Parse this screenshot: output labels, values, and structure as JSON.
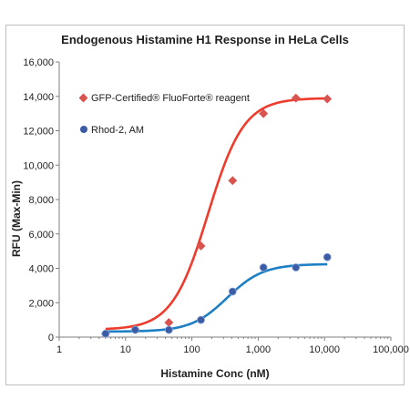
{
  "chart_data": {
    "type": "scatter",
    "title": "Endogenous Histamine H1 Response in HeLa Cells",
    "xlabel": "Histamine Conc (nM)",
    "ylabel": "RFU (Max-Min)",
    "x_scale": "log",
    "xlim": [
      1,
      100000
    ],
    "ylim": [
      0,
      16000
    ],
    "x_ticks": [
      1,
      10,
      100,
      1000,
      10000,
      100000
    ],
    "x_tick_labels": [
      "1",
      "10",
      "100",
      "1,000",
      "10,000",
      "100,000"
    ],
    "y_ticks": [
      0,
      2000,
      4000,
      6000,
      8000,
      10000,
      12000,
      14000,
      16000
    ],
    "y_tick_labels": [
      "0",
      "2,000",
      "4,000",
      "6,000",
      "8,000",
      "10,000",
      "12,000",
      "14,000",
      "16,000"
    ],
    "grid": false,
    "legend_position": "top-left",
    "series": [
      {
        "name": "GFP-Certified® FluoForte® reagent",
        "marker": "diamond",
        "marker_color": "#d9534f",
        "line_color": "#ef3b2c",
        "points": [
          {
            "x": 5,
            "y": 200
          },
          {
            "x": 14,
            "y": 450
          },
          {
            "x": 45,
            "y": 850
          },
          {
            "x": 137,
            "y": 5300
          },
          {
            "x": 411,
            "y": 9100
          },
          {
            "x": 1200,
            "y": 13000
          },
          {
            "x": 3700,
            "y": 13900
          },
          {
            "x": 11000,
            "y": 13850
          }
        ],
        "fit": {
          "bottom": 430,
          "top": 13900,
          "ec50": 175,
          "hill": 1.6
        }
      },
      {
        "name": "Rhod-2, AM",
        "marker": "circle",
        "marker_color": "#3b5ba5",
        "line_color": "#1f7fc4",
        "points": [
          {
            "x": 5,
            "y": 200
          },
          {
            "x": 14,
            "y": 420
          },
          {
            "x": 45,
            "y": 420
          },
          {
            "x": 137,
            "y": 1000
          },
          {
            "x": 411,
            "y": 2650
          },
          {
            "x": 1200,
            "y": 4050
          },
          {
            "x": 3700,
            "y": 4050
          },
          {
            "x": 11000,
            "y": 4650
          }
        ],
        "fit": {
          "bottom": 320,
          "top": 4250,
          "ec50": 340,
          "hill": 1.6
        }
      }
    ]
  }
}
